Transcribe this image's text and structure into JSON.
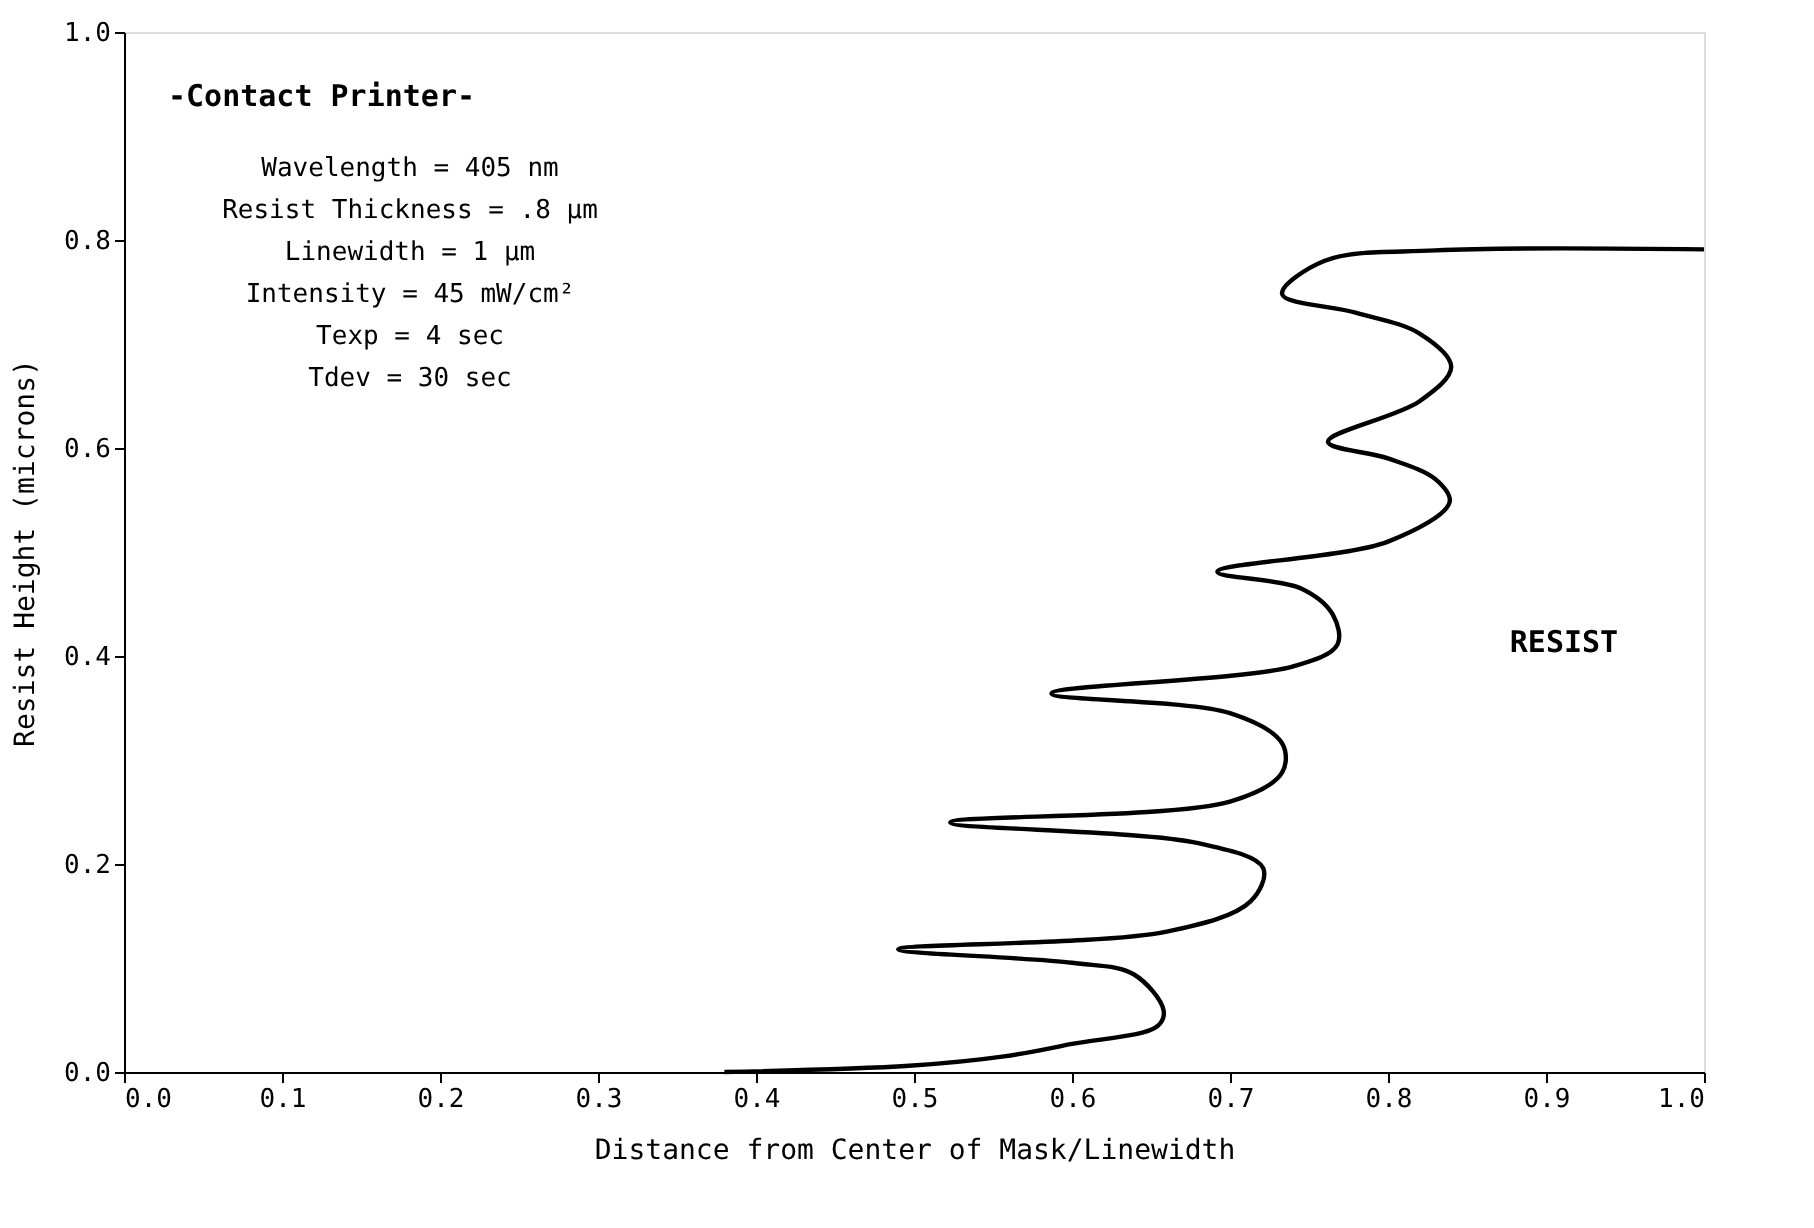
{
  "chart_data": {
    "type": "line",
    "title": "-Contact Printer-",
    "xlabel": "Distance from Center of Mask/Linewidth",
    "ylabel": "Resist Height (microns)",
    "xlim": [
      0,
      1
    ],
    "ylim": [
      0,
      1
    ],
    "xticks": [
      {
        "value": 0,
        "label": "0.0"
      },
      0.1,
      0.2,
      0.3,
      0.4,
      0.5,
      0.6,
      0.7,
      0.8,
      0.9,
      {
        "value": 1,
        "label": "1.0"
      }
    ],
    "yticks": [
      {
        "value": 0,
        "label": "0.0"
      },
      0.2,
      0.4,
      0.6,
      0.8,
      {
        "value": 1,
        "label": "1.0"
      }
    ],
    "grid": false,
    "marker": "none",
    "line_style": "solid",
    "annotations": [
      "Wavelength = 405 nm",
      "Resist Thickness = .8 μm",
      "Linewidth = 1 μm",
      "Intensity = 45 mW/cm²",
      "Texp = 4 sec",
      "Tdev = 30 sec",
      "RESIST"
    ],
    "series": [
      {
        "color": "#000000",
        "x": [
          1.0,
          0.83,
          0.76,
          0.733,
          0.78,
          0.82,
          0.84,
          0.82,
          0.762,
          0.8,
          0.83,
          0.839,
          0.8,
          0.692,
          0.745,
          0.765,
          0.768,
          0.74,
          0.587,
          0.7,
          0.733,
          0.733,
          0.7,
          0.523,
          0.68,
          0.721,
          0.713,
          0.66,
          0.49,
          0.6,
          0.639,
          0.658,
          0.654,
          0.6,
          0.557,
          0.497,
          0.38
        ],
        "values": [
          0.791,
          0.79,
          0.78,
          0.748,
          0.73,
          0.71,
          0.678,
          0.645,
          0.606,
          0.59,
          0.57,
          0.548,
          0.51,
          0.481,
          0.465,
          0.44,
          0.411,
          0.39,
          0.364,
          0.345,
          0.316,
          0.288,
          0.26,
          0.24,
          0.22,
          0.196,
          0.164,
          0.135,
          0.118,
          0.105,
          0.094,
          0.059,
          0.044,
          0.027,
          0.015,
          0.006,
          0.0
        ]
      }
    ]
  }
}
